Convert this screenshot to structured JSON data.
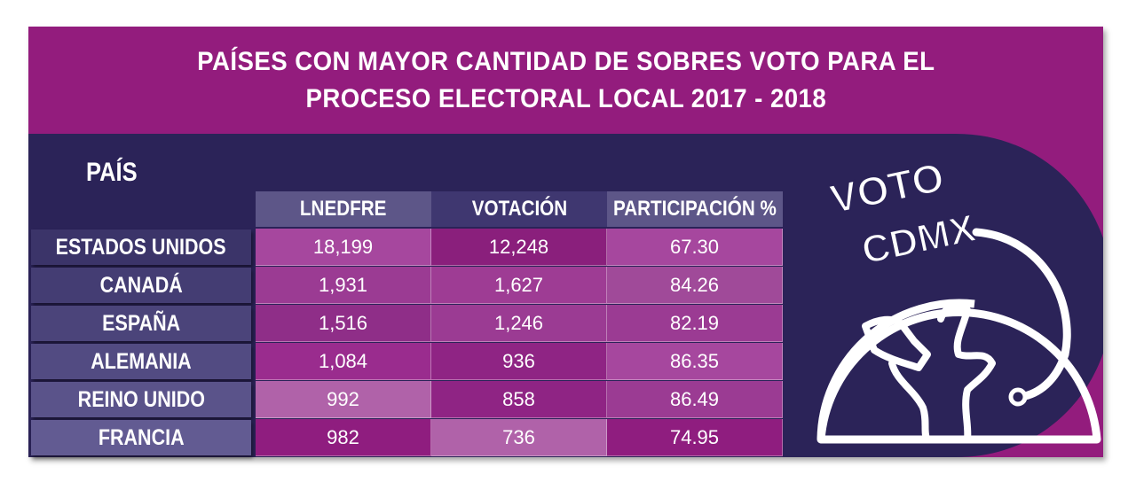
{
  "title": {
    "line1": "PAÍSES CON MAYOR CANTIDAD DE SOBRES VOTO PARA EL",
    "line2": "PROCESO ELECTORAL LOCAL 2017 - 2018"
  },
  "logo": {
    "word1": "VOTO",
    "word2": "CDMX",
    "icon": "globe-ballot-icon"
  },
  "colors": {
    "magenta": "#931c7d",
    "navy": "#2b2358",
    "header_cell": "#5d5688",
    "row_label": "#3b3469"
  },
  "chart_data": {
    "type": "table",
    "row_header": "PAÍS",
    "columns": [
      "LNEDFRE",
      "VOTACIÓN",
      "PARTICIPACIÓN %"
    ],
    "rows": [
      {
        "country": "ESTADOS UNIDOS",
        "values": [
          "18,199",
          "12,248",
          "67.30"
        ]
      },
      {
        "country": "CANADÁ",
        "values": [
          "1,931",
          "1,627",
          "84.26"
        ]
      },
      {
        "country": "ESPAÑA",
        "values": [
          "1,516",
          "1,246",
          "82.19"
        ]
      },
      {
        "country": "ALEMANIA",
        "values": [
          "1,084",
          "936",
          "86.35"
        ]
      },
      {
        "country": "REINO UNIDO",
        "values": [
          "992",
          "858",
          "86.49"
        ]
      },
      {
        "country": "FRANCIA",
        "values": [
          "982",
          "736",
          "74.95"
        ]
      }
    ]
  }
}
